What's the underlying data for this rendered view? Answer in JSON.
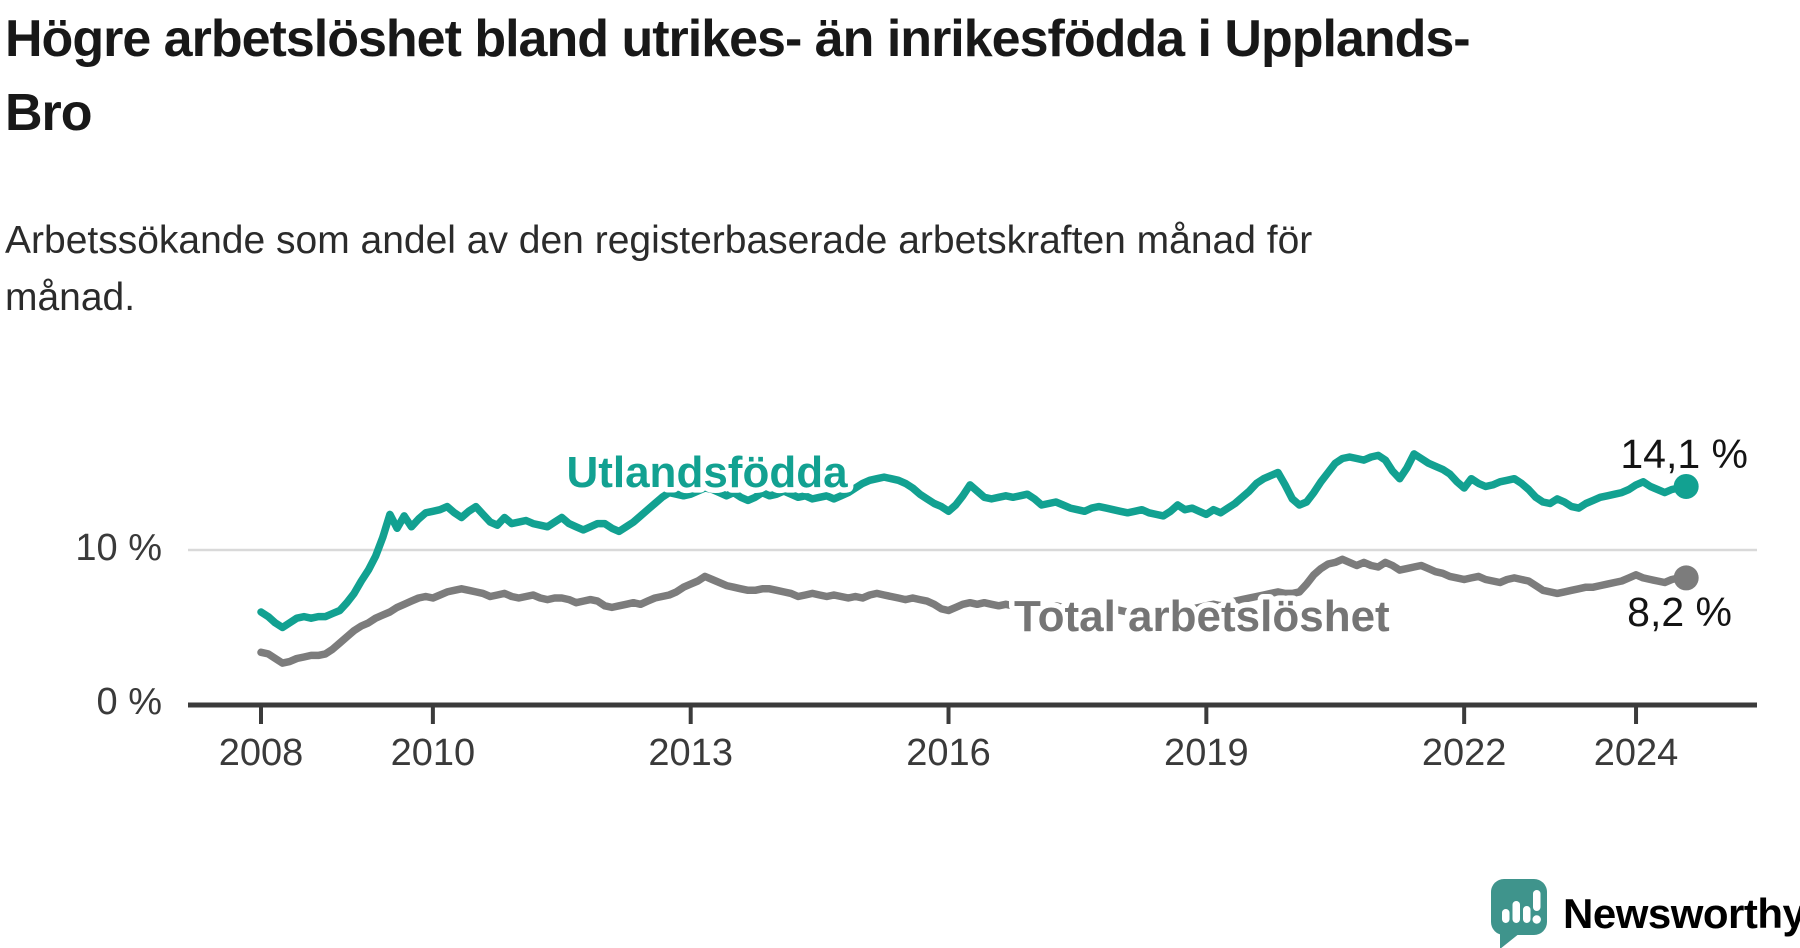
{
  "title": "Högre arbetslöshet bland utrikes- än inrikesfödda i Upplands-Bro",
  "subtitle": "Arbetssökande som andel av den registerbaserade arbetskraften månad för månad.",
  "branding": {
    "logo_text": "Newsworthy",
    "logo_color": "#3f948c"
  },
  "colors": {
    "foreign_born_line": "#12a191",
    "total_line": "#7c7c7c",
    "total_label": "#757575",
    "axis": "#3b3b3b",
    "gridline": "#d9d9d9",
    "text": "#181818"
  },
  "chart_data": {
    "type": "line",
    "title": "Högre arbetslöshet bland utrikes- än inrikesfödda i Upplands-Bro",
    "subtitle": "Arbetssökande som andel av den registerbaserade arbetskraften månad för månad.",
    "unit": "percent of registered labour force",
    "x_axis": {
      "range_years": [
        2007.15,
        2025.4
      ],
      "ticks": [
        2008,
        2010,
        2013,
        2016,
        2019,
        2022,
        2024
      ]
    },
    "y_axis": {
      "range": [
        0,
        17.5
      ],
      "ticks": [
        {
          "value": 0,
          "label": "0 %"
        },
        {
          "value": 10,
          "label": "10 %"
        }
      ],
      "gridlines": [
        10
      ]
    },
    "legend_position": "inline-labels-on-lines",
    "grid": "horizontal-only",
    "series": [
      {
        "name": "Utlandsfödda",
        "color": "#12a191",
        "end_label": "14,1 %",
        "last_value": 14.1,
        "start_year": 2008,
        "frequency": "monthly",
        "monthly_values": [
          6.0,
          5.7,
          5.3,
          5.0,
          5.3,
          5.6,
          5.7,
          5.6,
          5.7,
          5.7,
          5.9,
          6.1,
          6.6,
          7.2,
          8.0,
          8.7,
          9.6,
          10.8,
          12.3,
          11.4,
          12.2,
          11.5,
          12.0,
          12.4,
          12.5,
          12.6,
          12.8,
          12.4,
          12.1,
          12.5,
          12.8,
          12.3,
          11.8,
          11.6,
          12.1,
          11.7,
          11.8,
          11.9,
          11.7,
          11.6,
          11.5,
          11.8,
          12.1,
          11.7,
          11.5,
          11.3,
          11.5,
          11.7,
          11.7,
          11.4,
          11.2,
          11.5,
          11.8,
          12.2,
          12.6,
          13.0,
          13.4,
          13.7,
          13.6,
          13.5,
          13.6,
          13.8,
          14.0,
          13.9,
          13.7,
          13.5,
          13.7,
          13.4,
          13.2,
          13.4,
          13.7,
          13.5,
          13.6,
          13.8,
          13.6,
          13.4,
          13.5,
          13.3,
          13.4,
          13.5,
          13.3,
          13.5,
          13.7,
          14.0,
          14.3,
          14.5,
          14.6,
          14.7,
          14.6,
          14.5,
          14.3,
          14.0,
          13.6,
          13.3,
          13.0,
          12.8,
          12.5,
          12.9,
          13.5,
          14.2,
          13.8,
          13.4,
          13.3,
          13.4,
          13.5,
          13.4,
          13.5,
          13.6,
          13.3,
          12.9,
          13.0,
          13.1,
          12.9,
          12.7,
          12.6,
          12.5,
          12.7,
          12.8,
          12.7,
          12.6,
          12.5,
          12.4,
          12.5,
          12.6,
          12.4,
          12.3,
          12.2,
          12.5,
          12.9,
          12.6,
          12.7,
          12.5,
          12.3,
          12.6,
          12.4,
          12.7,
          13.0,
          13.4,
          13.8,
          14.3,
          14.6,
          14.8,
          15.0,
          14.2,
          13.3,
          12.9,
          13.1,
          13.7,
          14.4,
          15.0,
          15.6,
          15.9,
          16.0,
          15.9,
          15.8,
          16.0,
          16.1,
          15.8,
          15.1,
          14.6,
          15.3,
          16.2,
          15.9,
          15.6,
          15.4,
          15.2,
          14.9,
          14.4,
          14.0,
          14.6,
          14.3,
          14.1,
          14.2,
          14.4,
          14.5,
          14.6,
          14.3,
          13.9,
          13.4,
          13.1,
          13.0,
          13.3,
          13.1,
          12.8,
          12.7,
          13.0,
          13.2,
          13.4,
          13.5,
          13.6,
          13.7,
          13.9,
          14.2,
          14.4,
          14.1,
          13.9,
          13.7,
          13.9,
          14.0,
          14.1
        ]
      },
      {
        "name": "Total arbetslöshet",
        "color": "#7c7c7c",
        "end_label": "8,2 %",
        "last_value": 8.2,
        "start_year": 2008,
        "frequency": "monthly",
        "monthly_values": [
          3.4,
          3.3,
          3.0,
          2.7,
          2.8,
          3.0,
          3.1,
          3.2,
          3.2,
          3.3,
          3.6,
          4.0,
          4.4,
          4.8,
          5.1,
          5.3,
          5.6,
          5.8,
          6.0,
          6.3,
          6.5,
          6.7,
          6.9,
          7.0,
          6.9,
          7.1,
          7.3,
          7.4,
          7.5,
          7.4,
          7.3,
          7.2,
          7.0,
          7.1,
          7.2,
          7.0,
          6.9,
          7.0,
          7.1,
          6.9,
          6.8,
          6.9,
          6.9,
          6.8,
          6.6,
          6.7,
          6.8,
          6.7,
          6.4,
          6.3,
          6.4,
          6.5,
          6.6,
          6.5,
          6.7,
          6.9,
          7.0,
          7.1,
          7.3,
          7.6,
          7.8,
          8.0,
          8.3,
          8.1,
          7.9,
          7.7,
          7.6,
          7.5,
          7.4,
          7.4,
          7.5,
          7.5,
          7.4,
          7.3,
          7.2,
          7.0,
          7.1,
          7.2,
          7.1,
          7.0,
          7.1,
          7.0,
          6.9,
          7.0,
          6.9,
          7.1,
          7.2,
          7.1,
          7.0,
          6.9,
          6.8,
          6.9,
          6.8,
          6.7,
          6.5,
          6.2,
          6.1,
          6.3,
          6.5,
          6.6,
          6.5,
          6.6,
          6.5,
          6.4,
          6.5,
          6.4,
          6.3,
          6.4,
          6.3,
          6.2,
          6.3,
          6.4,
          6.3,
          6.2,
          6.1,
          6.2,
          6.3,
          6.2,
          6.1,
          6.2,
          6.1,
          6.0,
          6.1,
          6.2,
          6.1,
          6.0,
          6.0,
          6.1,
          6.2,
          6.1,
          6.2,
          6.3,
          6.4,
          6.5,
          6.4,
          6.6,
          6.7,
          6.8,
          6.9,
          7.0,
          7.1,
          7.2,
          7.3,
          7.2,
          7.2,
          7.3,
          7.8,
          8.4,
          8.8,
          9.1,
          9.2,
          9.4,
          9.2,
          9.0,
          9.2,
          9.0,
          8.9,
          9.2,
          9.0,
          8.7,
          8.8,
          8.9,
          9.0,
          8.8,
          8.6,
          8.5,
          8.3,
          8.2,
          8.1,
          8.2,
          8.3,
          8.1,
          8.0,
          7.9,
          8.1,
          8.2,
          8.1,
          8.0,
          7.7,
          7.4,
          7.3,
          7.2,
          7.3,
          7.4,
          7.5,
          7.6,
          7.6,
          7.7,
          7.8,
          7.9,
          8.0,
          8.2,
          8.4,
          8.2,
          8.1,
          8.0,
          7.9,
          8.1,
          8.2,
          8.2
        ]
      }
    ]
  }
}
